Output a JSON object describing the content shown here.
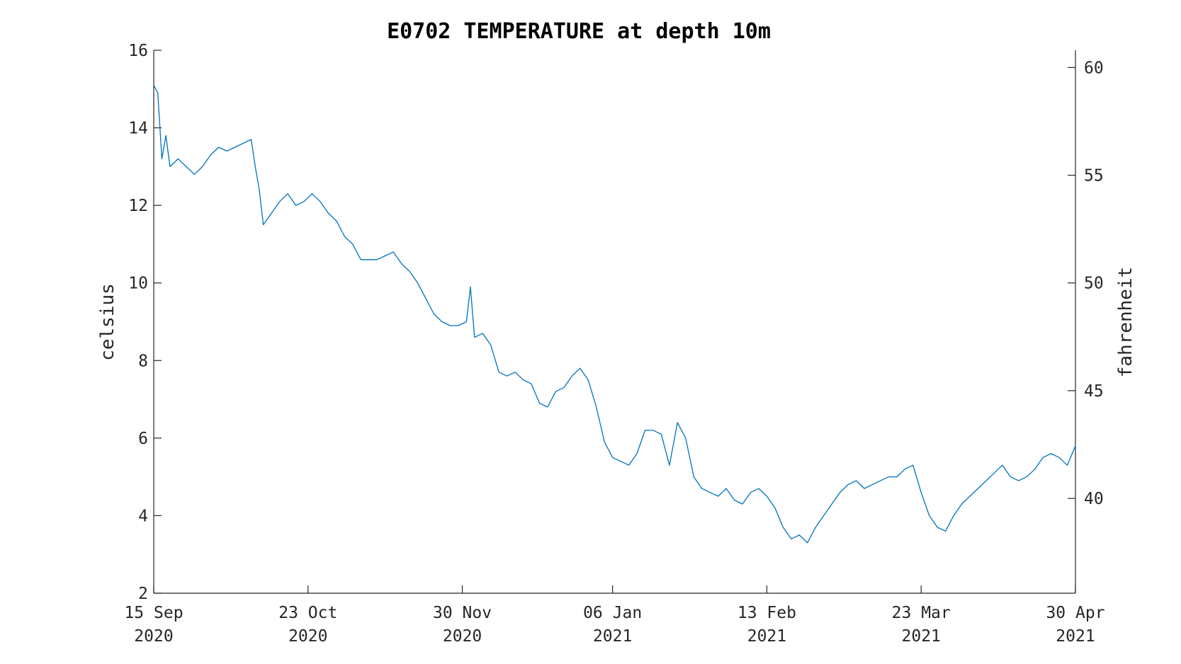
{
  "chart_data": {
    "type": "line",
    "title": "E0702 TEMPERATURE at depth 10m",
    "ylabel": "celsius",
    "y2label": "fahrenheit",
    "xlim": [
      "2020-09-15",
      "2021-04-30"
    ],
    "ylim": [
      2,
      16
    ],
    "y2lim": [
      35.6,
      60.8
    ],
    "x_ticks": [
      {
        "date": "2020-09-15",
        "day": "15 Sep",
        "year": "2020"
      },
      {
        "date": "2020-10-23",
        "day": "23 Oct",
        "year": "2020"
      },
      {
        "date": "2020-11-30",
        "day": "30 Nov",
        "year": "2020"
      },
      {
        "date": "2021-01-06",
        "day": "06 Jan",
        "year": "2021"
      },
      {
        "date": "2021-02-13",
        "day": "13 Feb",
        "year": "2021"
      },
      {
        "date": "2021-03-23",
        "day": "23 Mar",
        "year": "2021"
      },
      {
        "date": "2021-04-30",
        "day": "30 Apr",
        "year": "2021"
      }
    ],
    "y_ticks": [
      2,
      4,
      6,
      8,
      10,
      12,
      14,
      16
    ],
    "y2_ticks": [
      40,
      45,
      50,
      55,
      60
    ],
    "grid": false,
    "legend": "none",
    "color": "#0072BD",
    "series": [
      {
        "x": [
          "2020-09-15",
          "2020-09-16",
          "2020-09-17",
          "2020-09-18",
          "2020-09-19",
          "2020-09-21",
          "2020-09-23",
          "2020-09-25",
          "2020-09-27",
          "2020-09-29",
          "2020-10-01",
          "2020-10-03",
          "2020-10-05",
          "2020-10-07",
          "2020-10-09",
          "2020-10-10",
          "2020-10-11",
          "2020-10-12",
          "2020-10-14",
          "2020-10-16",
          "2020-10-18",
          "2020-10-20",
          "2020-10-22",
          "2020-10-24",
          "2020-10-26",
          "2020-10-28",
          "2020-10-30",
          "2020-11-01",
          "2020-11-03",
          "2020-11-05",
          "2020-11-07",
          "2020-11-09",
          "2020-11-11",
          "2020-11-13",
          "2020-11-15",
          "2020-11-17",
          "2020-11-19",
          "2020-11-21",
          "2020-11-23",
          "2020-11-25",
          "2020-11-27",
          "2020-11-29",
          "2020-12-01",
          "2020-12-02",
          "2020-12-03",
          "2020-12-05",
          "2020-12-07",
          "2020-12-09",
          "2020-12-11",
          "2020-12-13",
          "2020-12-15",
          "2020-12-17",
          "2020-12-19",
          "2020-12-21",
          "2020-12-23",
          "2020-12-25",
          "2020-12-27",
          "2020-12-29",
          "2020-12-31",
          "2021-01-02",
          "2021-01-04",
          "2021-01-06",
          "2021-01-08",
          "2021-01-10",
          "2021-01-12",
          "2021-01-14",
          "2021-01-16",
          "2021-01-18",
          "2021-01-20",
          "2021-01-22",
          "2021-01-24",
          "2021-01-26",
          "2021-01-28",
          "2021-01-30",
          "2021-02-01",
          "2021-02-03",
          "2021-02-05",
          "2021-02-07",
          "2021-02-09",
          "2021-02-11",
          "2021-02-13",
          "2021-02-15",
          "2021-02-17",
          "2021-02-19",
          "2021-02-21",
          "2021-02-23",
          "2021-02-25",
          "2021-02-27",
          "2021-03-01",
          "2021-03-03",
          "2021-03-05",
          "2021-03-07",
          "2021-03-09",
          "2021-03-11",
          "2021-03-13",
          "2021-03-15",
          "2021-03-17",
          "2021-03-19",
          "2021-03-21",
          "2021-03-23",
          "2021-03-25",
          "2021-03-27",
          "2021-03-29",
          "2021-03-31",
          "2021-04-02",
          "2021-04-04",
          "2021-04-06",
          "2021-04-08",
          "2021-04-10",
          "2021-04-12",
          "2021-04-14",
          "2021-04-16",
          "2021-04-18",
          "2021-04-20",
          "2021-04-22",
          "2021-04-24",
          "2021-04-26",
          "2021-04-28",
          "2021-04-30"
        ],
        "values": [
          15.1,
          14.9,
          13.2,
          13.8,
          13.0,
          13.2,
          13.0,
          12.8,
          13.0,
          13.3,
          13.5,
          13.4,
          13.5,
          13.6,
          13.7,
          13.0,
          12.4,
          11.5,
          11.8,
          12.1,
          12.3,
          12.0,
          12.1,
          12.3,
          12.1,
          11.8,
          11.6,
          11.2,
          11.0,
          10.6,
          10.6,
          10.6,
          10.7,
          10.8,
          10.5,
          10.3,
          10.0,
          9.6,
          9.2,
          9.0,
          8.9,
          8.9,
          9.0,
          9.9,
          8.6,
          8.7,
          8.4,
          7.7,
          7.6,
          7.7,
          7.5,
          7.4,
          6.9,
          6.8,
          7.2,
          7.3,
          7.6,
          7.8,
          7.5,
          6.8,
          5.9,
          5.5,
          5.4,
          5.3,
          5.6,
          6.2,
          6.2,
          6.1,
          5.3,
          6.4,
          6.0,
          5.0,
          4.7,
          4.6,
          4.5,
          4.7,
          4.4,
          4.3,
          4.6,
          4.7,
          4.5,
          4.2,
          3.7,
          3.4,
          3.5,
          3.3,
          3.7,
          4.0,
          4.3,
          4.6,
          4.8,
          4.9,
          4.7,
          4.8,
          4.9,
          5.0,
          5.0,
          5.2,
          5.3,
          4.6,
          4.0,
          3.7,
          3.6,
          4.0,
          4.3,
          4.5,
          4.7,
          4.9,
          5.1,
          5.3,
          5.0,
          4.9,
          5.0,
          5.2,
          5.5,
          5.6,
          5.5,
          5.3,
          5.8
        ]
      }
    ]
  }
}
